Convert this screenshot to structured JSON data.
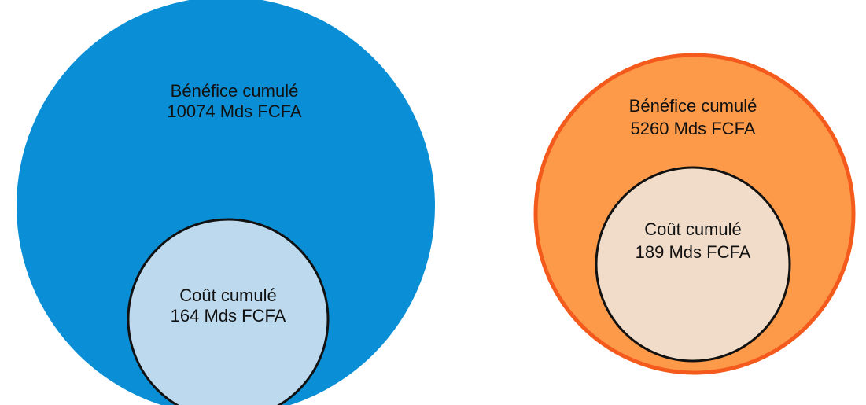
{
  "groups": [
    {
      "benefit": {
        "label": "Bénéfice cumulé",
        "amount": "10074 Mds FCFA"
      },
      "cost": {
        "label": "Coût cumulé",
        "amount": "164 Mds FCFA"
      }
    },
    {
      "benefit": {
        "label": "Bénéfice cumulé",
        "amount": "5260 Mds FCFA"
      },
      "cost": {
        "label": "Coût cumulé",
        "amount": "189 Mds FCFA"
      }
    }
  ]
}
